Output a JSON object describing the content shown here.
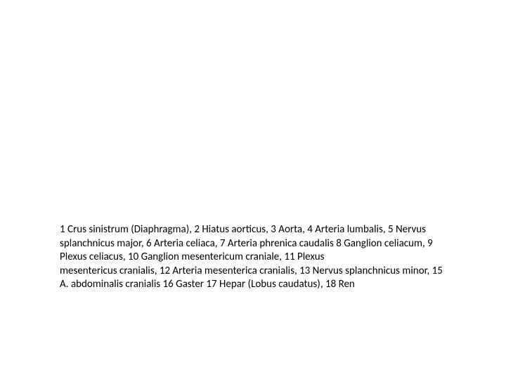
{
  "caption": {
    "text": "1 Crus sinistrum (Diaphragma), 2 Hiatus aorticus, 3 Aorta, 4 Arteria lumbalis, 5 Nervus splanchnicus major, 6 Arteria celiaca, 7 Arteria phrenica caudalis 8 Ganglion celiacum, 9 Plexus celiacus, 10 Ganglion mesentericum craniale, 11 Plexus\nmesentericus cranialis, 12 Arteria mesenterica cranialis, 13 Nervus splanchnicus minor, 15 A. abdominalis cranialis 16 Gaster 17 Hepar (Lobus caudatus), 18 Ren",
    "font_size": 15,
    "color": "#000000",
    "background_color": "#ffffff"
  }
}
